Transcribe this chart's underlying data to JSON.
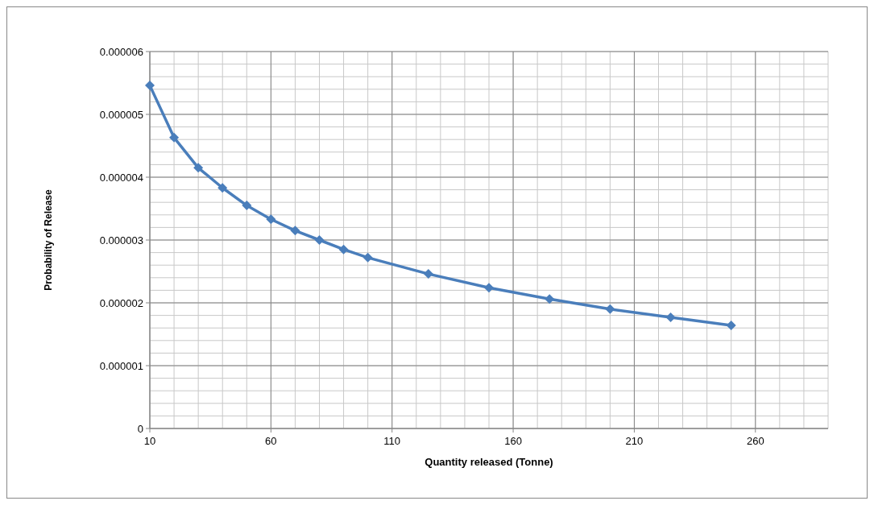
{
  "chart_data": {
    "type": "line",
    "xlabel": "Quantity released (Tonne)",
    "ylabel": "Probability of Release",
    "x": [
      10,
      20,
      30,
      40,
      50,
      60,
      70,
      80,
      90,
      100,
      125,
      150,
      175,
      200,
      225,
      250
    ],
    "series": [
      {
        "color": "#4a7ebb",
        "values": [
          5.46e-06,
          4.63e-06,
          4.15e-06,
          3.83e-06,
          3.55e-06,
          3.33e-06,
          3.15e-06,
          3e-06,
          2.85e-06,
          2.72e-06,
          2.46e-06,
          2.24e-06,
          2.06e-06,
          1.9e-06,
          1.77e-06,
          1.64e-06
        ]
      }
    ],
    "xlim": [
      10,
      290
    ],
    "xticks": [
      10,
      60,
      110,
      160,
      210,
      260
    ],
    "ylim": [
      0,
      6e-06
    ],
    "yticks": [
      {
        "value": 0,
        "label": "0"
      },
      {
        "value": 1e-06,
        "label": "0.000001"
      },
      {
        "value": 2e-06,
        "label": "0.000002"
      },
      {
        "value": 3e-06,
        "label": "0.000003"
      },
      {
        "value": 4e-06,
        "label": "0.000004"
      },
      {
        "value": 5e-06,
        "label": "0.000005"
      },
      {
        "value": 6e-06,
        "label": "0.000006"
      }
    ],
    "grid": true,
    "marker": "diamond",
    "line_style": "solid"
  }
}
